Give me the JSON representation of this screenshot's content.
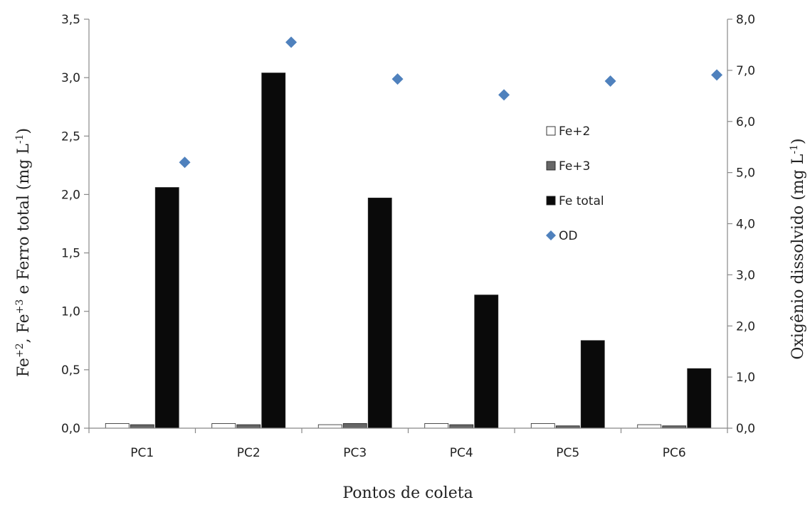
{
  "chart_data": {
    "type": "bar",
    "categories": [
      "PC1",
      "PC2",
      "PC3",
      "PC4",
      "PC5",
      "PC6"
    ],
    "series": [
      {
        "name": "Fe+2",
        "axis": "left",
        "kind": "bar",
        "color": "#ffffff",
        "values": [
          0.04,
          0.04,
          0.03,
          0.04,
          0.04,
          0.03
        ]
      },
      {
        "name": "Fe+3",
        "axis": "left",
        "kind": "bar",
        "color": "#666666",
        "values": [
          0.03,
          0.03,
          0.04,
          0.03,
          0.02,
          0.02
        ]
      },
      {
        "name": "Fe total",
        "axis": "left",
        "kind": "bar",
        "color": "#0a0a0a",
        "values": [
          2.06,
          3.04,
          1.97,
          1.14,
          0.75,
          0.51
        ]
      },
      {
        "name": "OD",
        "axis": "right",
        "kind": "scatter",
        "marker": "diamond",
        "color": "#4f81bd",
        "values": [
          5.2,
          7.55,
          6.83,
          6.52,
          6.79,
          6.91
        ]
      }
    ],
    "xlabel": "Pontos de coleta",
    "ylabel_left": {
      "pre": "Fe",
      "sup1": "+2",
      "mid": ", Fe",
      "sup2": "+3",
      "post1": " e Ferro total (mg L",
      "sup3": "-1",
      "post2": ")"
    },
    "ylabel_right": {
      "pre": "Oxigênio dissolvido (mg L",
      "sup": "-1",
      "post": ")"
    },
    "ylim_left": [
      0,
      3.5
    ],
    "ylim_right": [
      0,
      8
    ],
    "yticks_left": [
      "0,0",
      "0,5",
      "1,0",
      "1,5",
      "2,0",
      "2,5",
      "3,0",
      "3,5"
    ],
    "yticks_right": [
      "0,0",
      "1,0",
      "2,0",
      "3,0",
      "4,0",
      "5,0",
      "6,0",
      "7,0",
      "8,0"
    ],
    "grid": false,
    "legend_position": "right-inside"
  }
}
